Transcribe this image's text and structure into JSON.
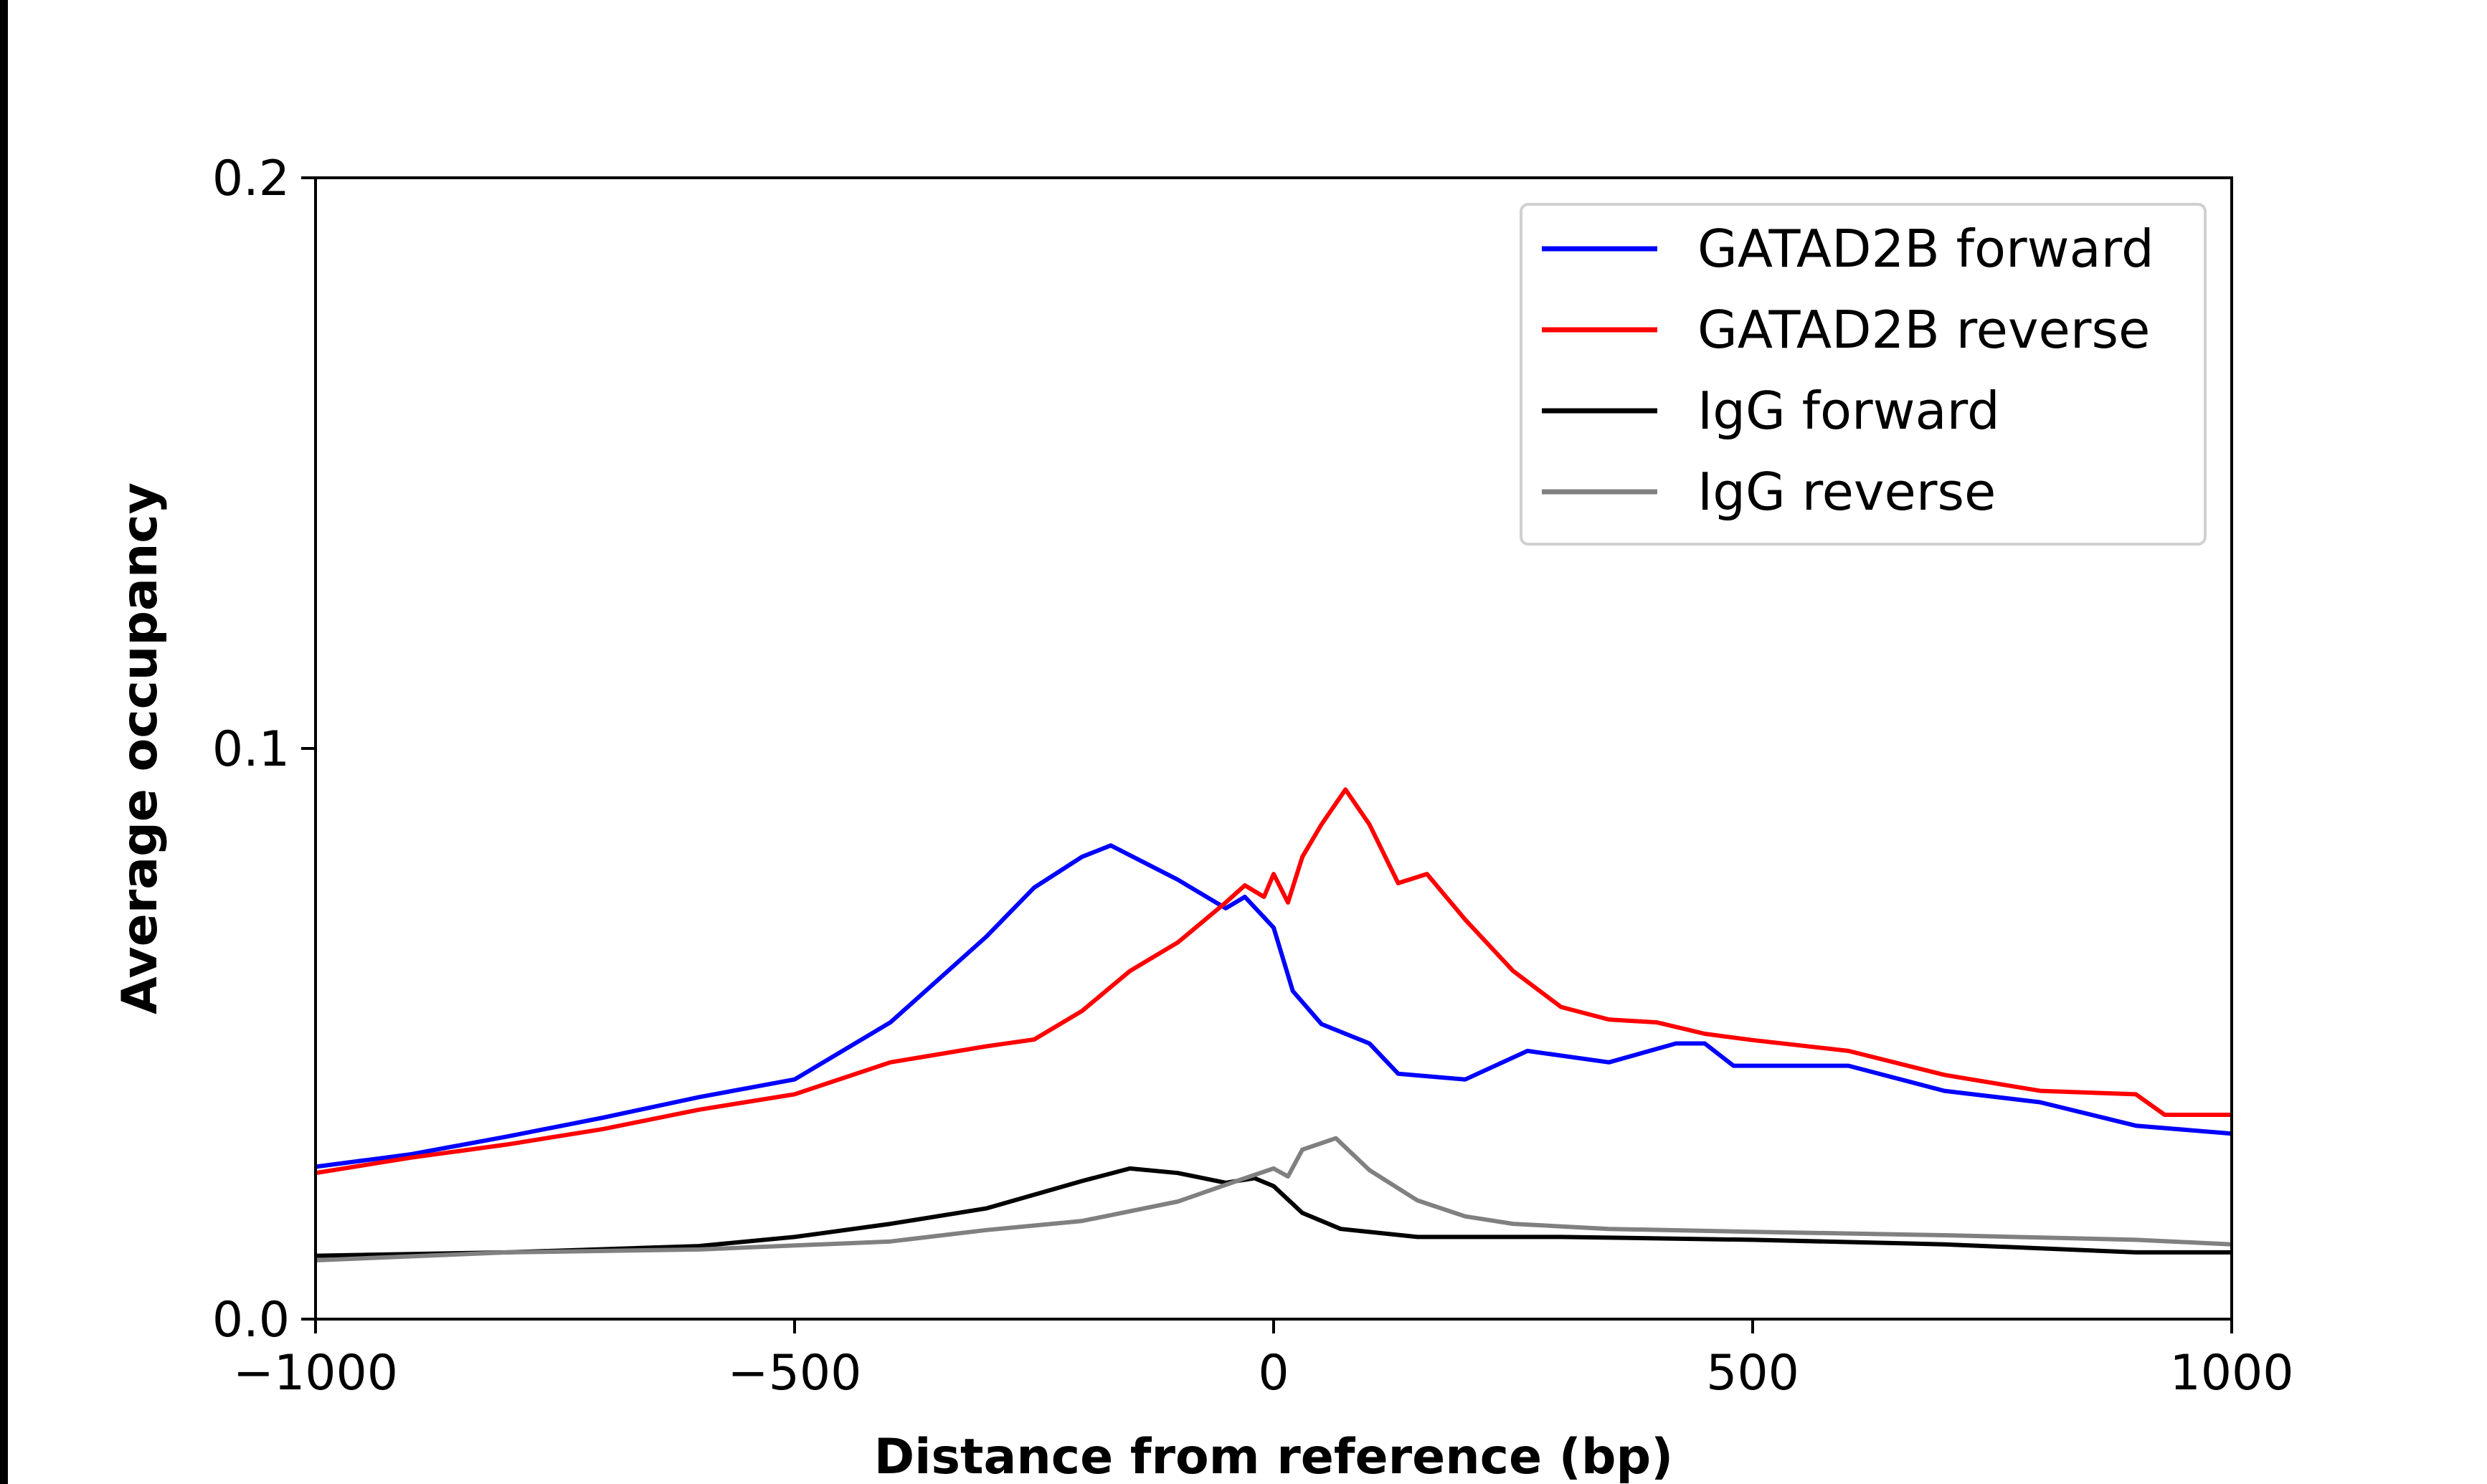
{
  "chart_data": {
    "type": "line",
    "title": "",
    "xlabel": "Distance from reference (bp)",
    "ylabel": "Average occupancy",
    "xlim": [
      -1000,
      1000
    ],
    "ylim": [
      0.0,
      0.2
    ],
    "xticks": [
      -1000,
      -500,
      0,
      500,
      1000
    ],
    "xtick_labels": [
      "−1000",
      "−500",
      "0",
      "500",
      "1000"
    ],
    "yticks": [
      0.0,
      0.1,
      0.2
    ],
    "ytick_labels": [
      "0.0",
      "0.1",
      "0.2"
    ],
    "grid": false,
    "legend_position": "top-right",
    "series": [
      {
        "name": "GATAD2B forward",
        "color": "#0000ff",
        "x": [
          -1000,
          -900,
          -800,
          -700,
          -600,
          -500,
          -400,
          -300,
          -250,
          -200,
          -170,
          -100,
          -50,
          -30,
          0,
          20,
          50,
          100,
          130,
          200,
          265,
          350,
          420,
          450,
          480,
          600,
          700,
          800,
          900,
          1000
        ],
        "y": [
          0.0267,
          0.0289,
          0.032,
          0.0353,
          0.0389,
          0.042,
          0.052,
          0.067,
          0.0756,
          0.081,
          0.083,
          0.077,
          0.072,
          0.074,
          0.0686,
          0.0575,
          0.0517,
          0.0483,
          0.043,
          0.042,
          0.047,
          0.045,
          0.0483,
          0.0483,
          0.0444,
          0.0444,
          0.04,
          0.038,
          0.0339,
          0.0325
        ]
      },
      {
        "name": "GATAD2B reverse",
        "color": "#ff0000",
        "x": [
          -1000,
          -900,
          -800,
          -700,
          -600,
          -500,
          -400,
          -300,
          -250,
          -200,
          -150,
          -100,
          -50,
          -30,
          -10,
          0,
          15,
          30,
          50,
          75,
          100,
          130,
          160,
          200,
          250,
          300,
          350,
          400,
          450,
          500,
          600,
          700,
          800,
          900,
          930,
          1000
        ],
        "y": [
          0.0256,
          0.0283,
          0.0306,
          0.0333,
          0.0367,
          0.0394,
          0.045,
          0.0478,
          0.049,
          0.054,
          0.061,
          0.066,
          0.073,
          0.076,
          0.074,
          0.078,
          0.073,
          0.081,
          0.0867,
          0.0928,
          0.0867,
          0.0764,
          0.078,
          0.07,
          0.061,
          0.0547,
          0.0525,
          0.052,
          0.05,
          0.0489,
          0.047,
          0.0428,
          0.04,
          0.0394,
          0.0358,
          0.0358
        ]
      },
      {
        "name": "IgG forward",
        "color": "#000000",
        "x": [
          -1000,
          -800,
          -600,
          -500,
          -400,
          -300,
          -200,
          -150,
          -100,
          -50,
          -20,
          0,
          30,
          70,
          150,
          200,
          300,
          500,
          700,
          900,
          1000
        ],
        "y": [
          0.0111,
          0.0117,
          0.0128,
          0.0144,
          0.0167,
          0.0194,
          0.0242,
          0.0264,
          0.0256,
          0.0239,
          0.0247,
          0.0233,
          0.0186,
          0.0158,
          0.0144,
          0.0144,
          0.0144,
          0.0139,
          0.0131,
          0.0117,
          0.0117
        ]
      },
      {
        "name": "IgG reverse",
        "color": "#808080",
        "x": [
          -1000,
          -800,
          -600,
          -400,
          -300,
          -200,
          -100,
          -30,
          0,
          15,
          30,
          65,
          100,
          150,
          200,
          250,
          350,
          500,
          700,
          900,
          1000
        ],
        "y": [
          0.0103,
          0.0117,
          0.0122,
          0.0136,
          0.0156,
          0.0172,
          0.0206,
          0.0247,
          0.0264,
          0.025,
          0.0297,
          0.0317,
          0.0261,
          0.0208,
          0.018,
          0.0167,
          0.0158,
          0.0153,
          0.0147,
          0.0139,
          0.0131
        ]
      }
    ]
  }
}
